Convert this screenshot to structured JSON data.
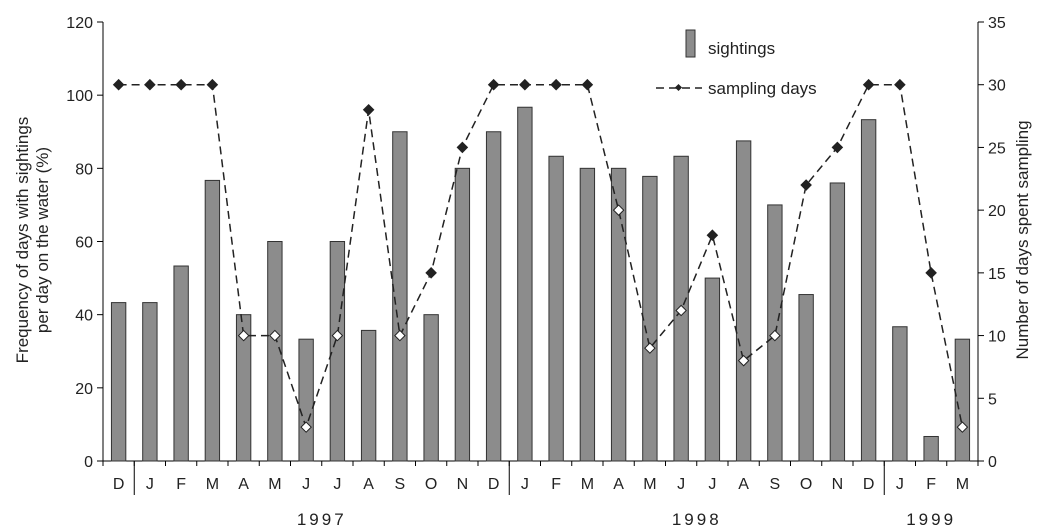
{
  "colors": {
    "bar_fill": "#8c8c8c",
    "bar_stroke": "#333333",
    "line": "#222222",
    "marker_fill": "#ffffff",
    "axis": "#000000"
  },
  "chart_data": {
    "type": "bar",
    "title": "",
    "categories": [
      "D",
      "J",
      "F",
      "M",
      "A",
      "M",
      "J",
      "J",
      "A",
      "S",
      "O",
      "N",
      "D",
      "J",
      "F",
      "M",
      "A",
      "M",
      "J",
      "J",
      "A",
      "S",
      "O",
      "N",
      "D",
      "J",
      "F",
      "M"
    ],
    "years": [
      {
        "label": "1997",
        "first_index": 1,
        "last_index": 12
      },
      {
        "label": "1998",
        "first_index": 13,
        "last_index": 24
      },
      {
        "label": "1999",
        "first_index": 25,
        "last_index": 27
      }
    ],
    "year_dividers_after_index": [
      0,
      12,
      24
    ],
    "ylabel": "Frequency of days with sightings per day on the water (%)",
    "ylabel_lines": [
      "Frequency of days with sightings",
      "per day on the water (%)"
    ],
    "y2label": "Number of days spent sampling",
    "ylim": [
      0,
      120
    ],
    "yticks": [
      0,
      20,
      40,
      60,
      80,
      100,
      120
    ],
    "y2lim": [
      0,
      35
    ],
    "y2ticks": [
      0,
      5,
      10,
      15,
      20,
      25,
      30,
      35
    ],
    "legend_position": "top-right",
    "series": [
      {
        "name": "sightings",
        "type": "bar",
        "axis": "left",
        "values": [
          43.3,
          43.3,
          53.3,
          76.7,
          40,
          60,
          33.3,
          60,
          35.7,
          90,
          40,
          80,
          90,
          96.7,
          83.3,
          80,
          80,
          77.8,
          83.3,
          50,
          87.5,
          70,
          45.5,
          76,
          93.3,
          36.7,
          6.7,
          33.3
        ]
      },
      {
        "name": "sampling days",
        "type": "line",
        "axis": "right",
        "values": [
          30,
          30,
          30,
          30,
          10,
          10,
          2.7,
          10,
          28,
          10,
          15,
          25,
          30,
          30,
          30,
          30,
          20,
          9,
          12,
          18,
          8,
          10,
          22,
          25,
          30,
          30,
          15,
          2.7
        ]
      }
    ]
  }
}
